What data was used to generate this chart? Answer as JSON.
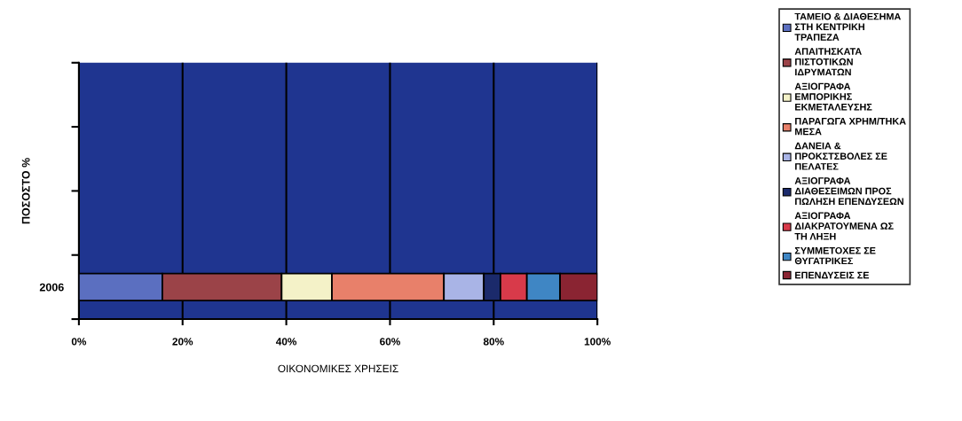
{
  "chart_data": {
    "type": "bar",
    "orientation": "horizontal",
    "stacked": true,
    "ylabel": "ΠΟΣΟΣΤΟ %",
    "xlabel": "ΟΙΚΟΝΟΜΙΚΕΣ ΧΡΗΣΕΙΣ",
    "categories": [
      null,
      null,
      null,
      "2006"
    ],
    "xlim": [
      0,
      100
    ],
    "xticks": [
      {
        "value": 0,
        "label": "0%"
      },
      {
        "value": 20,
        "label": "20%"
      },
      {
        "value": 40,
        "label": "40%"
      },
      {
        "value": 60,
        "label": "60%"
      },
      {
        "value": 80,
        "label": "80%"
      },
      {
        "value": 100,
        "label": "100%"
      }
    ],
    "grid": "x",
    "legend": "right",
    "series": [
      {
        "name": "ΤΑΜΕΙΟ & ΔΙΑΘΕΣΗΜΑ\nΣΤΗ ΚΕΝΤΡΙΚΗ\nΤΡΑΠΕΖΑ",
        "color": "#5b6fc0",
        "values": [
          null,
          null,
          null,
          16.1
        ]
      },
      {
        "name": "ΑΠΑΙΤΗΣΚΑΤΑ\nΠΙΣΤΟΤΙΚΩΝ\nΙΔΡΥΜΑΤΩΝ",
        "color": "#9b4348",
        "values": [
          null,
          null,
          null,
          23.0
        ]
      },
      {
        "name": "ΑΞΙΟΓΡΑΦΑ\nΕΜΠΟΡΙΚΗΣ\nΕΚΜΕΤΑΛΕΥΣΗΣ",
        "color": "#f4f2c8",
        "values": [
          null,
          null,
          null,
          9.7
        ]
      },
      {
        "name": "ΠΑΡΑΓΩΓΑ ΧΡΗΜ/ΤΗΚΑ\nΜΕΣΑ",
        "color": "#e8806a",
        "values": [
          null,
          null,
          null,
          21.6
        ]
      },
      {
        "name": "ΔΑΝΕΙΑ &\nΠΡΟΚΣΤΣΒΟΛΕΣ ΣΕ\nΠΕΛΑΤΕΣ",
        "color": "#a9b4e6",
        "values": [
          null,
          null,
          null,
          7.7
        ]
      },
      {
        "name": "ΑΞΙΟΓΡΑΦΑ\nΔΙΑΘΕΣΕΙΜΩΝ ΠΡΟΣ\nΠΩΛΗΣΗ ΕΠΕΝΔΥΣΕΩΝ",
        "color": "#1b2a6b",
        "values": [
          null,
          null,
          null,
          3.2
        ]
      },
      {
        "name": "ΑΞΙΟΓΡΑΦΑ\nΔΙΑΚΡΑΤΟΥΜΕΝΑ ΩΣ\nΤΗ ΛΗΞΗ",
        "color": "#d83a4a",
        "values": [
          null,
          null,
          null,
          5.1
        ]
      },
      {
        "name": "ΣΥΜΜΕΤΟΧΕΣ ΣΕ\nΘΥΓΑΤΡΙΚΕΣ",
        "color": "#3f86c4",
        "values": [
          null,
          null,
          null,
          6.4
        ]
      },
      {
        "name": "ΕΠΕΝΔΥΣΕΙΣ ΣΕ",
        "color": "#8a2432",
        "values": [
          null,
          null,
          null,
          7.2
        ]
      }
    ]
  }
}
